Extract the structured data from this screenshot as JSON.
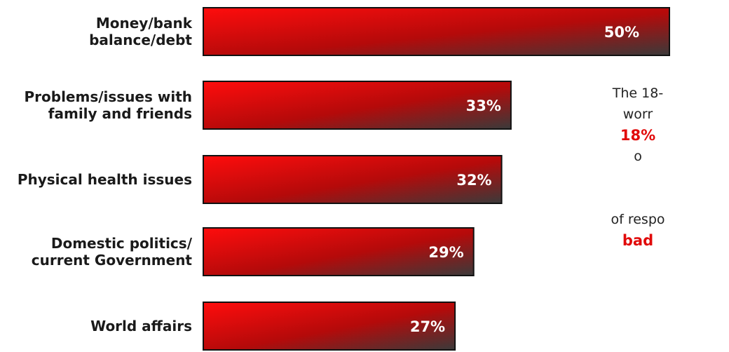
{
  "chart_data": {
    "type": "bar",
    "orientation": "horizontal",
    "categories": [
      [
        "Money/bank",
        "balance/debt"
      ],
      [
        "Problems/issues with",
        "family and friends"
      ],
      [
        "Physical health issues"
      ],
      [
        "Domestic politics/",
        "current Government"
      ],
      [
        "World affairs"
      ]
    ],
    "values": [
      50,
      33,
      32,
      29,
      27
    ],
    "value_labels": [
      "50%",
      "33%",
      "32%",
      "29%",
      "27%"
    ],
    "xlim": [
      0,
      50
    ],
    "grid": false,
    "legend": "none",
    "colors": {
      "bar_start": "#ff0d0d",
      "bar_mid": "#b40a0a",
      "bar_end": "#3a3a3a",
      "border": "#111111"
    }
  },
  "side_note": {
    "line1": "The 18-",
    "line2": "worr",
    "highlight1": "18%",
    "line3": "o",
    "line4": "of respo",
    "highlight2": "bad"
  }
}
